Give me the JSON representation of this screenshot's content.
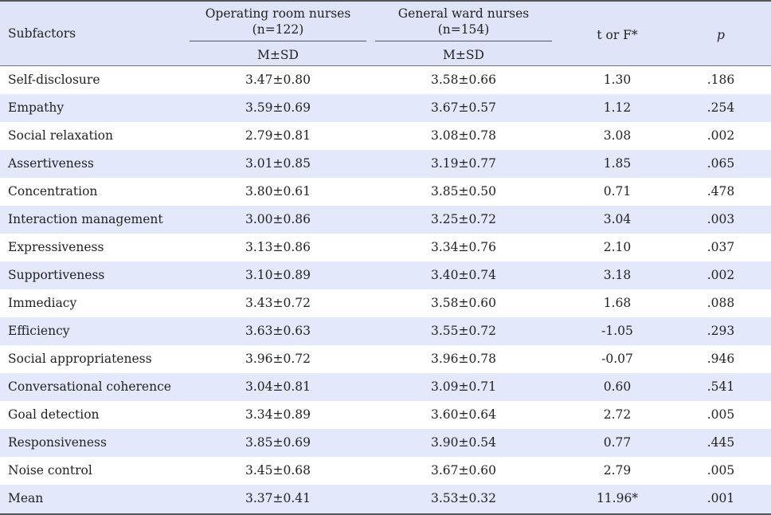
{
  "table": {
    "headers": {
      "subfactors": "Subfactors",
      "group1_name": "Operating room nurses",
      "group1_n": "(n=122)",
      "group1_stat": "M±SD",
      "group2_name": "General ward nurses",
      "group2_n": "(n=154)",
      "group2_stat": "M±SD",
      "test": "t or F*",
      "p": "p"
    },
    "rows": [
      {
        "subfactor": "Self-disclosure",
        "or_msd": "3.47±0.80",
        "gw_msd": "3.58±0.66",
        "t": "1.30",
        "p": ".186"
      },
      {
        "subfactor": "Empathy",
        "or_msd": "3.59±0.69",
        "gw_msd": "3.67±0.57",
        "t": "1.12",
        "p": ".254"
      },
      {
        "subfactor": "Social relaxation",
        "or_msd": "2.79±0.81",
        "gw_msd": "3.08±0.78",
        "t": "3.08",
        "p": ".002"
      },
      {
        "subfactor": "Assertiveness",
        "or_msd": "3.01±0.85",
        "gw_msd": "3.19±0.77",
        "t": "1.85",
        "p": ".065"
      },
      {
        "subfactor": "Concentration",
        "or_msd": "3.80±0.61",
        "gw_msd": "3.85±0.50",
        "t": "0.71",
        "p": ".478"
      },
      {
        "subfactor": "Interaction management",
        "or_msd": "3.00±0.86",
        "gw_msd": "3.25±0.72",
        "t": "3.04",
        "p": ".003"
      },
      {
        "subfactor": "Expressiveness",
        "or_msd": "3.13±0.86",
        "gw_msd": "3.34±0.76",
        "t": "2.10",
        "p": ".037"
      },
      {
        "subfactor": "Supportiveness",
        "or_msd": "3.10±0.89",
        "gw_msd": "3.40±0.74",
        "t": "3.18",
        "p": ".002"
      },
      {
        "subfactor": "Immediacy",
        "or_msd": "3.43±0.72",
        "gw_msd": "3.58±0.60",
        "t": "1.68",
        "p": ".088"
      },
      {
        "subfactor": "Efficiency",
        "or_msd": "3.63±0.63",
        "gw_msd": "3.55±0.72",
        "t": "-1.05",
        "p": ".293"
      },
      {
        "subfactor": "Social appropriateness",
        "or_msd": "3.96±0.72",
        "gw_msd": "3.96±0.78",
        "t": "-0.07",
        "p": ".946"
      },
      {
        "subfactor": "Conversational coherence",
        "or_msd": "3.04±0.81",
        "gw_msd": "3.09±0.71",
        "t": "0.60",
        "p": ".541"
      },
      {
        "subfactor": "Goal detection",
        "or_msd": "3.34±0.89",
        "gw_msd": "3.60±0.64",
        "t": "2.72",
        "p": ".005"
      },
      {
        "subfactor": "Responsiveness",
        "or_msd": "3.85±0.69",
        "gw_msd": "3.90±0.54",
        "t": "0.77",
        "p": ".445"
      },
      {
        "subfactor": "Noise control",
        "or_msd": "3.45±0.68",
        "gw_msd": "3.67±0.60",
        "t": "2.79",
        "p": ".005"
      },
      {
        "subfactor": "Mean",
        "or_msd": "3.37±0.41",
        "gw_msd": "3.53±0.32",
        "t": "11.96*",
        "p": ".001"
      }
    ]
  }
}
